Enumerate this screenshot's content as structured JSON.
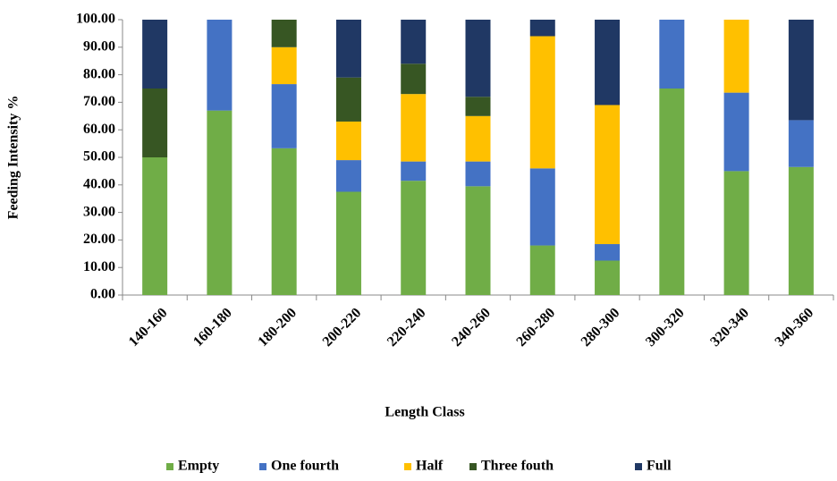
{
  "chart_data": {
    "type": "stacked_bar",
    "x_label": "Length Class",
    "y_label": "Feeding Intensity %",
    "categories": [
      "140-160",
      "160-180",
      "180-200",
      "200-220",
      "220-240",
      "240-260",
      "260-280",
      "280-300",
      "300-320",
      "320-340",
      "340-360"
    ],
    "series": [
      {
        "name": "Empty",
        "color": "#70ad47",
        "values": [
          50,
          67,
          53.3,
          37.5,
          41.5,
          39.5,
          18,
          12.5,
          75,
          45,
          46.5
        ]
      },
      {
        "name": "One fourth",
        "color": "#4472c4",
        "values": [
          0,
          33,
          23.3,
          11.5,
          7,
          9,
          28,
          6,
          25,
          28.5,
          17
        ]
      },
      {
        "name": "Half",
        "color": "#ffc000",
        "values": [
          0,
          0,
          13.4,
          14,
          24.5,
          16.5,
          48,
          50.5,
          0,
          26.5,
          0
        ]
      },
      {
        "name": "Three fouth",
        "color": "#375623",
        "values": [
          25,
          0,
          10,
          16,
          11,
          7,
          0,
          0,
          0,
          0,
          0
        ]
      },
      {
        "name": "Full",
        "color": "#203864",
        "values": [
          25,
          0,
          0,
          21,
          16,
          28,
          6,
          31,
          0,
          0,
          36.5
        ]
      }
    ],
    "ylim": [
      0,
      100
    ],
    "yticks": [
      {
        "value": 0,
        "label": "0.00"
      },
      {
        "value": 10,
        "label": "10.00"
      },
      {
        "value": 20,
        "label": "20.00"
      },
      {
        "value": 30,
        "label": "30.00"
      },
      {
        "value": 40,
        "label": "40.00"
      },
      {
        "value": 50,
        "label": "50.00"
      },
      {
        "value": 60,
        "label": "60.00"
      },
      {
        "value": 70,
        "label": "70.00"
      },
      {
        "value": 80,
        "label": "80.00"
      },
      {
        "value": 90,
        "label": "90.00"
      },
      {
        "value": 100,
        "label": "100.00"
      }
    ],
    "legend": "bottom"
  }
}
